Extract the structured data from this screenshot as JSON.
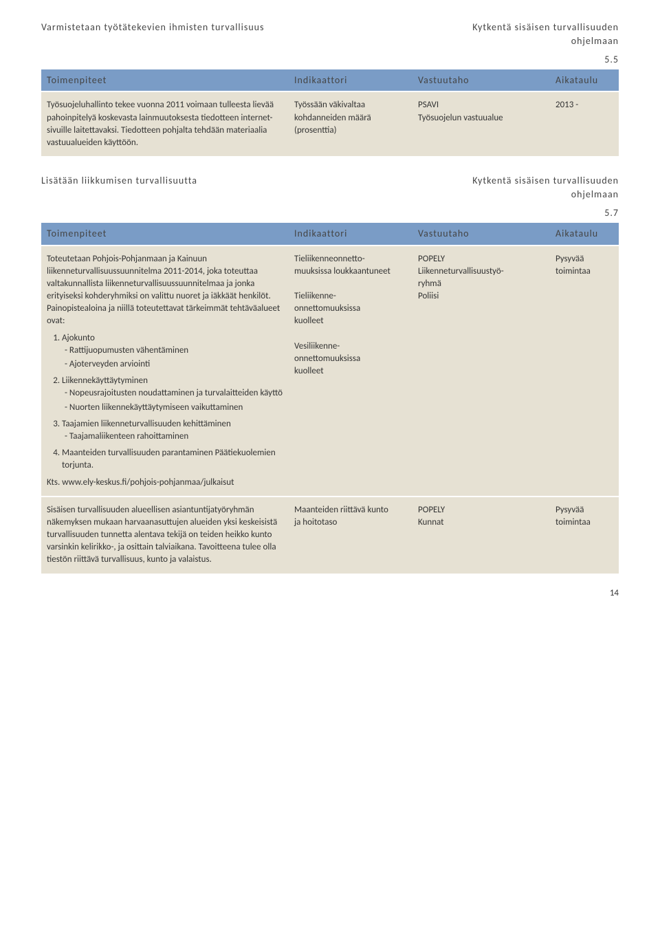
{
  "section1": {
    "title_left": "Varmistetaan työtätekevien ihmisten turvallisuus",
    "title_right_line1": "Kytkentä sisäisen turvallisuuden",
    "title_right_line2": "ohjelmaan",
    "number": "5.5",
    "headers": {
      "c1": "Toimenpiteet",
      "c2": "Indikaattori",
      "c3": "Vastuutaho",
      "c4": "Aikataulu"
    },
    "row": {
      "c1": "Työsuojeluhallinto tekee vuonna 2011 voimaan tulleesta lievää pahoinpitelyä koskevasta lainmuutoksesta tiedotteen internet-sivuille laitettavaksi. Tiedotteen pohjalta tehdään materiaalia vastuualueiden käyttöön.",
      "c2_l1": "Työssään väkivaltaa",
      "c2_l2": "kohdanneiden määrä",
      "c2_l3": "(prosenttia)",
      "c3_l1": "PSAVI",
      "c3_l2": "Työsuojelun vastuualue",
      "c4": "2013 -"
    }
  },
  "section2": {
    "title_left": "Lisätään liikkumisen turvallisuutta",
    "title_right_line1": "Kytkentä sisäisen turvallisuuden",
    "title_right_line2": "ohjelmaan",
    "number": "5.7",
    "headers": {
      "c1": "Toimenpiteet",
      "c2": "Indikaattori",
      "c3": "Vastuutaho",
      "c4": "Aikataulu"
    },
    "row1": {
      "c1_intro": "Toteutetaan Pohjois-Pohjanmaan ja Kainuun liikenneturvallisuussuunnitelma 2011-2014, joka toteuttaa valtakunnallista liikenneturvallisuussuunnitelmaa ja jonka erityiseksi kohderyhmiksi on valittu nuoret ja iäkkäät henkilöt. Painopistealoina ja niillä toteutettavat tärkeimmät tehtäväalueet ovat:",
      "li1": "Ajokunto",
      "li1a": "Rattijuopumusten vähentäminen",
      "li1b": "Ajoterveyden arviointi",
      "li2": "Liikennekäyttäytyminen",
      "li2a": "Nopeusrajoitusten noudattaminen ja turvalaitteiden käyttö",
      "li2b": "Nuorten liikennekäyttäytymiseen vaikuttaminen",
      "li3": "Taajamien liikenneturvallisuuden kehittäminen",
      "li3a": "Taajamaliikenteen rahoittaminen",
      "li4": "Maanteiden turvallisuuden parantaminen Päätiekuolemien torjunta.",
      "c1_tail": "Kts. www.ely-keskus.fi/pohjois-pohjanmaa/julkaisut",
      "c2_b1a": "Tieliikenneonnetto-",
      "c2_b1b": "muuksissa loukkaantuneet",
      "c2_b2a": "Tieliikenne-",
      "c2_b2b": "onnettomuuksissa",
      "c2_b2c": "kuolleet",
      "c2_b3a": "Vesiliikenne-",
      "c2_b3b": "onnettomuuksissa",
      "c2_b3c": "kuolleet",
      "c3_l1": "POPELY",
      "c3_l2": "Liikenneturvallisuustyö-",
      "c3_l3": "ryhmä",
      "c3_l4": "Poliisi",
      "c4_l1": "Pysyvää",
      "c4_l2": "toimintaa"
    },
    "row2": {
      "c1": "Sisäisen turvallisuuden alueellisen asiantuntijatyöryhmän näkemyksen mukaan harvaanasuttujen alueiden yksi keskeisistä turvallisuuden tunnetta alentava tekijä on teiden heikko kunto varsinkin kelirikko-, ja osittain talviaikana. Tavoitteena tulee olla tiestön riittävä turvallisuus, kunto ja valaistus.",
      "c2_l1": "Maanteiden riittävä kunto",
      "c2_l2": "ja hoitotaso",
      "c3_l1": "POPELY",
      "c3_l2": "Kunnat",
      "c4_l1": "Pysyvää",
      "c4_l2": "toimintaa"
    }
  },
  "pagenum": "14"
}
